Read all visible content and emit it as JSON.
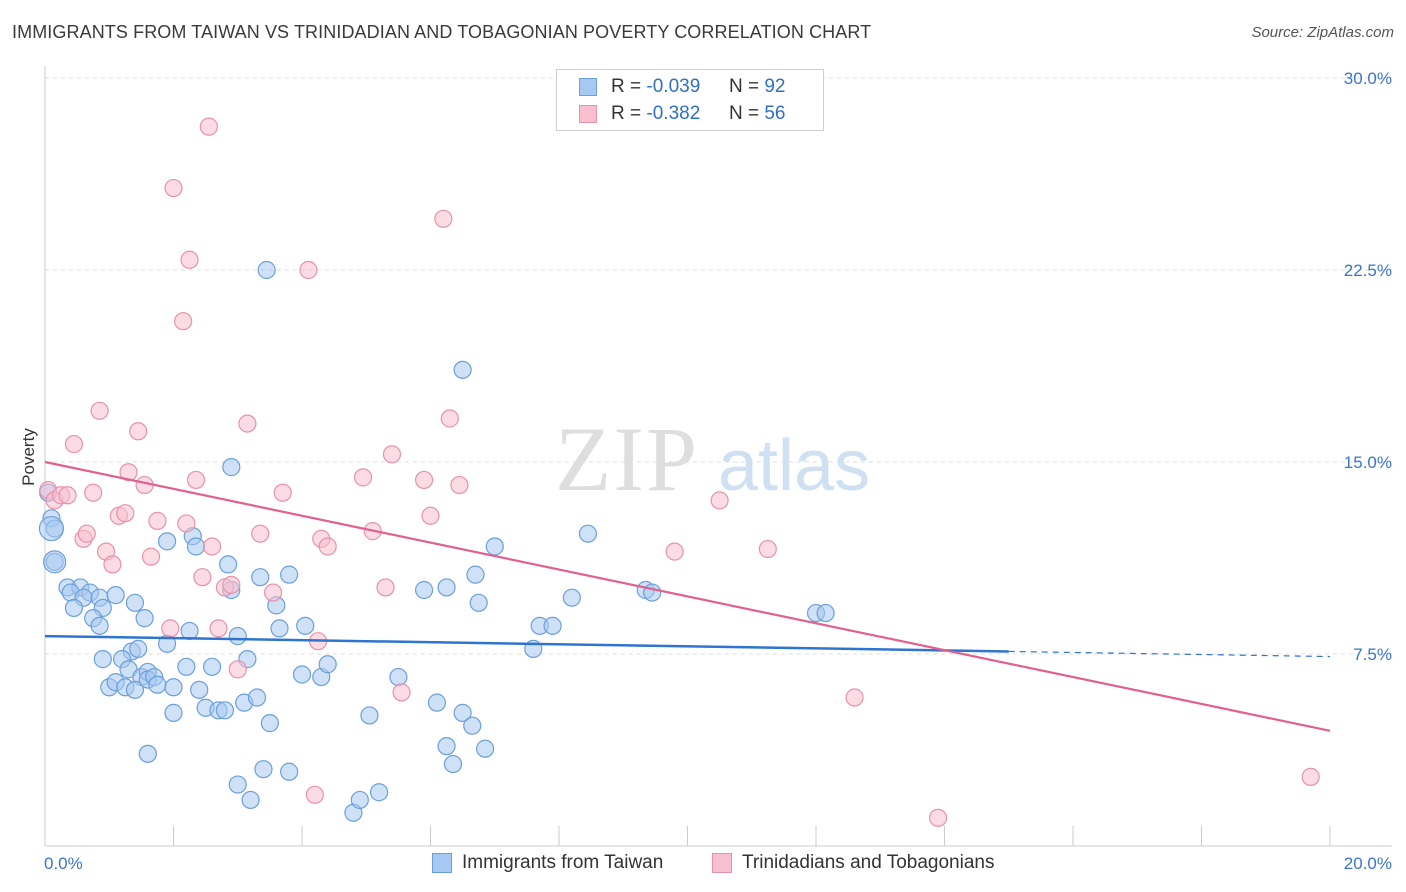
{
  "title": "IMMIGRANTS FROM TAIWAN VS TRINIDADIAN AND TOBAGONIAN POVERTY CORRELATION CHART",
  "source": "Source: ZipAtlas.com",
  "watermark": {
    "zip": "ZIP",
    "atlas": "atlas"
  },
  "legend": [
    {
      "r_label": "R =",
      "r_value": "-0.039",
      "n_label": "N =",
      "n_value": "92",
      "color": "#a7c8f0",
      "border": "#6b9fd9"
    },
    {
      "r_label": "R =",
      "r_value": "-0.382",
      "n_label": "N =",
      "n_value": "56",
      "color": "#f7bfd0",
      "border": "#e891ab"
    }
  ],
  "bottom_legend": [
    {
      "label": "Immigrants from Taiwan",
      "color": "#a7c8f0",
      "border": "#6b9fd9"
    },
    {
      "label": "Trinidadians and Tobagonians",
      "color": "#f7bfd0",
      "border": "#e891ab"
    }
  ],
  "chart_data": {
    "type": "scatter",
    "title": "IMMIGRANTS FROM TAIWAN VS TRINIDADIAN AND TOBAGONIAN POVERTY CORRELATION CHART",
    "xlabel": "",
    "ylabel": "Poverty",
    "xlim": [
      0,
      20
    ],
    "ylim": [
      0,
      30
    ],
    "x_tick_labels": [
      "0.0%",
      "20.0%"
    ],
    "y_ticks": [
      7.5,
      15.0,
      22.5,
      30.0
    ],
    "y_tick_labels": [
      "7.5%",
      "15.0%",
      "22.5%",
      "30.0%"
    ],
    "grid": "horizontal dashed",
    "legend_position": "top-center",
    "series": [
      {
        "name": "Immigrants from Taiwan",
        "color": "#6b9fd9",
        "fill": "#a7c8f0",
        "line_color": "#2f74d0",
        "trend": {
          "x": [
            0.0,
            15.0
          ],
          "y": [
            8.2,
            7.6
          ],
          "dashed_to": [
            20.0,
            7.4
          ]
        },
        "points": [
          [
            0.1,
            12.8
          ],
          [
            0.15,
            12.4
          ],
          [
            0.15,
            11.1
          ],
          [
            0.35,
            10.1
          ],
          [
            0.55,
            10.1
          ],
          [
            0.4,
            9.9
          ],
          [
            0.7,
            9.9
          ],
          [
            0.6,
            9.7
          ],
          [
            0.85,
            9.7
          ],
          [
            0.9,
            9.3
          ],
          [
            0.45,
            9.3
          ],
          [
            0.75,
            8.9
          ],
          [
            0.85,
            8.6
          ],
          [
            1.1,
            9.8
          ],
          [
            1.4,
            9.5
          ],
          [
            1.55,
            8.9
          ],
          [
            1.9,
            11.9
          ],
          [
            2.3,
            12.1
          ],
          [
            2.35,
            11.7
          ],
          [
            2.25,
            8.4
          ],
          [
            1.9,
            7.9
          ],
          [
            1.35,
            7.6
          ],
          [
            1.45,
            7.7
          ],
          [
            0.9,
            7.3
          ],
          [
            1.2,
            7.3
          ],
          [
            1.3,
            6.9
          ],
          [
            1.5,
            6.6
          ],
          [
            1.6,
            6.8
          ],
          [
            2.2,
            7.0
          ],
          [
            2.6,
            7.0
          ],
          [
            3.15,
            7.3
          ],
          [
            1.0,
            6.2
          ],
          [
            1.1,
            6.4
          ],
          [
            1.25,
            6.2
          ],
          [
            1.4,
            6.1
          ],
          [
            1.6,
            6.5
          ],
          [
            1.7,
            6.6
          ],
          [
            1.75,
            6.3
          ],
          [
            2.0,
            6.2
          ],
          [
            2.4,
            6.1
          ],
          [
            2.0,
            5.2
          ],
          [
            2.5,
            5.4
          ],
          [
            2.7,
            5.3
          ],
          [
            2.8,
            5.3
          ],
          [
            3.1,
            5.6
          ],
          [
            3.3,
            5.8
          ],
          [
            3.5,
            4.8
          ],
          [
            2.85,
            11.0
          ],
          [
            3.0,
            8.2
          ],
          [
            3.35,
            10.5
          ],
          [
            3.6,
            9.4
          ],
          [
            3.65,
            8.5
          ],
          [
            3.8,
            10.6
          ],
          [
            4.05,
            8.6
          ],
          [
            4.0,
            6.7
          ],
          [
            4.3,
            6.6
          ],
          [
            4.4,
            7.1
          ],
          [
            3.4,
            3.0
          ],
          [
            3.8,
            2.9
          ],
          [
            3.0,
            2.4
          ],
          [
            3.2,
            1.8
          ],
          [
            2.9,
            14.8
          ],
          [
            3.45,
            22.5
          ],
          [
            1.6,
            3.6
          ],
          [
            4.8,
            1.3
          ],
          [
            4.9,
            1.8
          ],
          [
            5.2,
            2.1
          ],
          [
            5.05,
            5.1
          ],
          [
            5.5,
            6.6
          ],
          [
            5.9,
            10.0
          ],
          [
            6.25,
            10.1
          ],
          [
            6.1,
            5.6
          ],
          [
            6.5,
            5.2
          ],
          [
            6.65,
            4.7
          ],
          [
            6.25,
            3.9
          ],
          [
            6.35,
            3.2
          ],
          [
            6.85,
            3.8
          ],
          [
            6.7,
            10.6
          ],
          [
            6.75,
            9.5
          ],
          [
            7.0,
            11.7
          ],
          [
            7.6,
            7.7
          ],
          [
            7.7,
            8.6
          ],
          [
            7.9,
            8.6
          ],
          [
            8.2,
            9.7
          ],
          [
            8.45,
            12.2
          ],
          [
            9.35,
            10.0
          ],
          [
            9.45,
            9.9
          ],
          [
            12.0,
            9.1
          ],
          [
            12.15,
            9.1
          ],
          [
            6.5,
            18.6
          ],
          [
            2.9,
            10.0
          ],
          [
            0.05,
            13.8
          ]
        ]
      },
      {
        "name": "Trinidadians and Tobagonians",
        "color": "#e891ab",
        "fill": "#f7bfd0",
        "line_color": "#e0608f",
        "trend": {
          "x": [
            0.0,
            20.0
          ],
          "y": [
            15.0,
            4.5
          ]
        },
        "points": [
          [
            0.05,
            13.9
          ],
          [
            0.15,
            13.5
          ],
          [
            0.25,
            13.7
          ],
          [
            0.35,
            13.7
          ],
          [
            0.45,
            15.7
          ],
          [
            0.6,
            12.0
          ],
          [
            0.65,
            12.2
          ],
          [
            0.75,
            13.8
          ],
          [
            0.85,
            17.0
          ],
          [
            0.95,
            11.5
          ],
          [
            1.05,
            11.0
          ],
          [
            1.15,
            12.9
          ],
          [
            1.25,
            13.0
          ],
          [
            1.3,
            14.6
          ],
          [
            1.45,
            16.2
          ],
          [
            1.55,
            14.1
          ],
          [
            1.65,
            11.3
          ],
          [
            1.75,
            12.7
          ],
          [
            1.95,
            8.5
          ],
          [
            2.0,
            25.7
          ],
          [
            2.15,
            20.5
          ],
          [
            2.2,
            12.6
          ],
          [
            2.25,
            22.9
          ],
          [
            2.35,
            14.3
          ],
          [
            2.45,
            10.5
          ],
          [
            2.55,
            28.1
          ],
          [
            2.6,
            11.7
          ],
          [
            2.7,
            8.5
          ],
          [
            2.8,
            10.1
          ],
          [
            2.9,
            10.2
          ],
          [
            3.0,
            6.9
          ],
          [
            3.15,
            16.5
          ],
          [
            3.35,
            12.2
          ],
          [
            3.55,
            9.9
          ],
          [
            3.7,
            13.8
          ],
          [
            4.1,
            22.5
          ],
          [
            4.3,
            12.0
          ],
          [
            4.4,
            11.7
          ],
          [
            4.25,
            8.0
          ],
          [
            4.2,
            2.0
          ],
          [
            4.95,
            14.4
          ],
          [
            5.1,
            12.3
          ],
          [
            5.3,
            10.1
          ],
          [
            5.4,
            15.3
          ],
          [
            5.55,
            6.0
          ],
          [
            5.9,
            14.3
          ],
          [
            6.0,
            12.9
          ],
          [
            6.2,
            24.5
          ],
          [
            6.3,
            16.7
          ],
          [
            6.45,
            14.1
          ],
          [
            9.8,
            11.5
          ],
          [
            10.5,
            13.5
          ],
          [
            11.25,
            11.6
          ],
          [
            12.6,
            5.8
          ],
          [
            13.9,
            1.1
          ],
          [
            19.7,
            2.7
          ]
        ]
      }
    ]
  }
}
